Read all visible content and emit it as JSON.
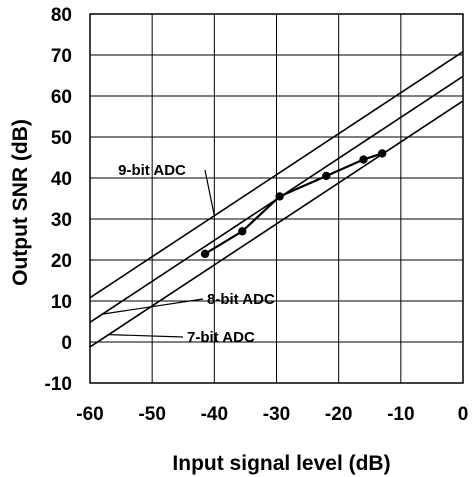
{
  "chart_data": {
    "type": "line",
    "xlabel": "Input signal level (dB)",
    "ylabel": "Output SNR (dB)",
    "xlim": [
      -60,
      0
    ],
    "ylim": [
      -10,
      80
    ],
    "xticks": [
      "-60",
      "-50",
      "-40",
      "-30",
      "-20",
      "-10",
      "0"
    ],
    "yticks": [
      "80",
      "70",
      "60",
      "50",
      "40",
      "30",
      "20",
      "10",
      "0",
      "-10"
    ],
    "grid": true,
    "series": [
      {
        "name": "9-bit ADC",
        "style": "line",
        "x": [
          -60,
          0
        ],
        "y": [
          10.8,
          70.8
        ]
      },
      {
        "name": "8-bit ADC",
        "style": "line",
        "x": [
          -60,
          0
        ],
        "y": [
          4.8,
          64.8
        ]
      },
      {
        "name": "7-bit ADC",
        "style": "line",
        "x": [
          -60,
          0
        ],
        "y": [
          -1.2,
          58.8
        ]
      },
      {
        "name": "",
        "style": "line-markers",
        "x": [
          -41.5,
          -35.5,
          -29.5,
          -22,
          -16,
          -13
        ],
        "y": [
          21.5,
          27,
          35.5,
          40.5,
          44.5,
          46
        ]
      }
    ],
    "annotations": [
      {
        "text": "9-bit ADC",
        "target_series": "9-bit ADC"
      },
      {
        "text": "8-bit ADC",
        "target_series": "8-bit ADC"
      },
      {
        "text": "7-bit ADC",
        "target_series": "7-bit ADC"
      }
    ]
  }
}
